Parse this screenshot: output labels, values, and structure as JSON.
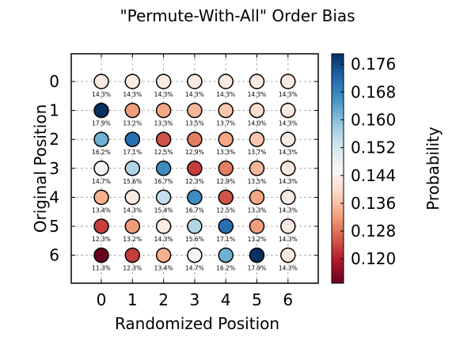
{
  "chart_data": {
    "type": "heatmap",
    "title": "\"Permute-With-All\" Order Bias",
    "xlabel": "Randomized Position",
    "ylabel": "Original Position",
    "x_ticks": [
      "0",
      "1",
      "2",
      "3",
      "4",
      "5",
      "6"
    ],
    "y_ticks": [
      "0",
      "1",
      "2",
      "3",
      "4",
      "5",
      "6"
    ],
    "grid": true,
    "colorbar": {
      "label": "Probability",
      "ticks": [
        "0.120",
        "0.128",
        "0.136",
        "0.144",
        "0.152",
        "0.160",
        "0.168",
        "0.176"
      ],
      "tick_values": [
        0.12,
        0.128,
        0.136,
        0.144,
        0.152,
        0.16,
        0.168,
        0.176
      ],
      "range": [
        0.113,
        0.179
      ],
      "colormap": "RdBu"
    },
    "matrix": [
      [
        0.143,
        0.143,
        0.143,
        0.143,
        0.143,
        0.143,
        0.143
      ],
      [
        0.179,
        0.132,
        0.133,
        0.135,
        0.137,
        0.14,
        0.143
      ],
      [
        0.162,
        0.171,
        0.125,
        0.129,
        0.133,
        0.137,
        0.143
      ],
      [
        0.147,
        0.156,
        0.167,
        0.123,
        0.129,
        0.135,
        0.143
      ],
      [
        0.134,
        0.143,
        0.154,
        0.167,
        0.125,
        0.133,
        0.143
      ],
      [
        0.123,
        0.132,
        0.143,
        0.156,
        0.171,
        0.132,
        0.143
      ],
      [
        0.113,
        0.123,
        0.134,
        0.147,
        0.162,
        0.179,
        0.143
      ]
    ],
    "labels": [
      [
        "14.3%",
        "14.3%",
        "14.3%",
        "14.3%",
        "14.3%",
        "14.3%",
        "14.3%"
      ],
      [
        "17.9%",
        "13.2%",
        "13.3%",
        "13.5%",
        "13.7%",
        "14.0%",
        "14.3%"
      ],
      [
        "16.2%",
        "17.1%",
        "12.5%",
        "12.9%",
        "13.3%",
        "13.7%",
        "14.3%"
      ],
      [
        "14.7%",
        "15.6%",
        "16.7%",
        "12.3%",
        "12.9%",
        "13.5%",
        "14.3%"
      ],
      [
        "13.4%",
        "14.3%",
        "15.4%",
        "16.7%",
        "12.5%",
        "13.3%",
        "14.3%"
      ],
      [
        "12.3%",
        "13.2%",
        "14.3%",
        "15.6%",
        "17.1%",
        "13.2%",
        "14.3%"
      ],
      [
        "11.3%",
        "12.3%",
        "13.4%",
        "14.7%",
        "16.2%",
        "17.9%",
        "14.3%"
      ]
    ]
  }
}
